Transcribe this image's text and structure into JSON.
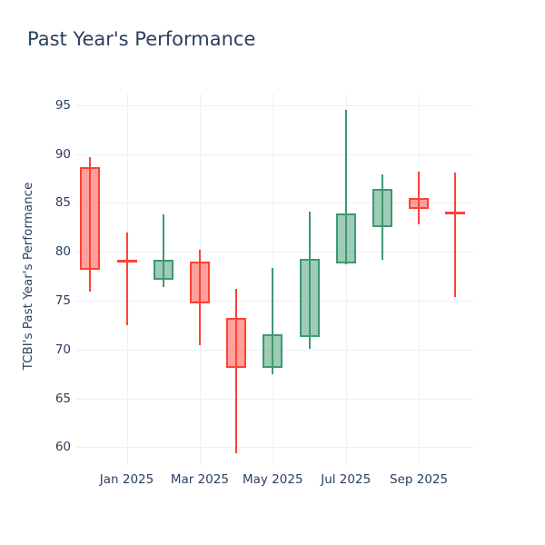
{
  "chart_data": {
    "type": "candlestick",
    "title": "Past Year's Performance",
    "ylabel": "TCBI's Past Year's Performance",
    "xlabel": "",
    "grid": true,
    "legend": false,
    "ylim": [
      58,
      96.2
    ],
    "y_ticks": [
      60,
      65,
      70,
      75,
      80,
      85,
      90,
      95
    ],
    "x_tick_labels": [
      "Jan 2025",
      "Mar 2025",
      "May 2025",
      "Jul 2025",
      "Sep 2025"
    ],
    "candles": [
      {
        "x": "Dec 2024",
        "open": 88.7,
        "high": 89.7,
        "low": 75.9,
        "close": 78.2
      },
      {
        "x": "Jan 2025",
        "open": 79.0,
        "high": 82.0,
        "low": 72.5,
        "close": 78.9
      },
      {
        "x": "Feb 2025",
        "open": 77.1,
        "high": 83.8,
        "low": 76.4,
        "close": 79.2
      },
      {
        "x": "Mar 2025",
        "open": 79.0,
        "high": 80.2,
        "low": 70.4,
        "close": 74.7
      },
      {
        "x": "Apr 2025",
        "open": 73.2,
        "high": 76.2,
        "low": 59.4,
        "close": 68.1
      },
      {
        "x": "May 2025",
        "open": 68.1,
        "high": 78.3,
        "low": 67.5,
        "close": 71.6
      },
      {
        "x": "Jun 2025",
        "open": 71.3,
        "high": 84.1,
        "low": 70.1,
        "close": 79.3
      },
      {
        "x": "Jul 2025",
        "open": 78.8,
        "high": 94.5,
        "low": 78.7,
        "close": 83.9
      },
      {
        "x": "Aug 2025",
        "open": 82.5,
        "high": 87.9,
        "low": 79.2,
        "close": 86.4
      },
      {
        "x": "Sep 2025",
        "open": 85.5,
        "high": 88.2,
        "low": 82.8,
        "close": 84.4
      },
      {
        "x": "Oct 2025",
        "open": 84.0,
        "high": 88.1,
        "low": 75.4,
        "close": 83.8
      }
    ],
    "colors": {
      "increasing_line": "#3D9970",
      "increasing_fill": "rgba(61,153,112,0.5)",
      "decreasing_line": "#FF4136",
      "decreasing_fill": "rgba(255,65,54,0.5)",
      "text": "#2a3f5f",
      "grid": "#ebf0f8",
      "background": "#ffffff"
    }
  }
}
